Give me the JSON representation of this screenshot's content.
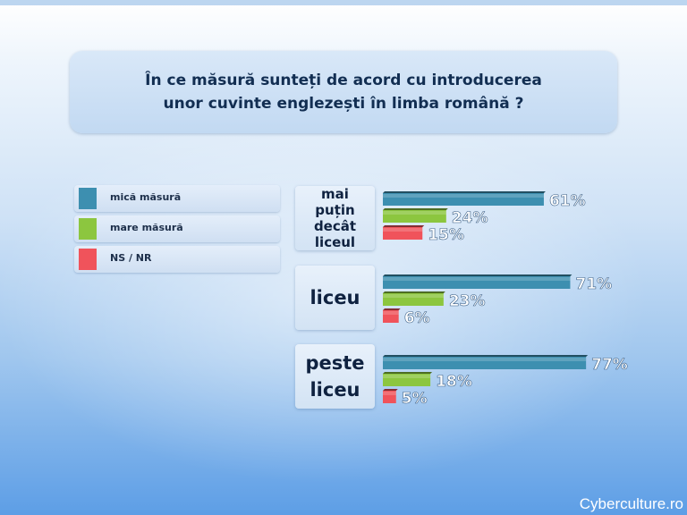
{
  "chart_data": {
    "type": "bar",
    "orientation": "horizontal",
    "title": "În ce măsură sunteți de acord cu introducerea unor cuvinte englezești în limba română ?",
    "categories": [
      "mai puțin decât liceul",
      "liceu",
      "peste liceu"
    ],
    "series": [
      {
        "name": "mică măsură",
        "color": "#3d8fb0",
        "values": [
          61,
          71,
          77
        ]
      },
      {
        "name": "mare măsură",
        "color": "#8cc63f",
        "values": [
          24,
          23,
          18
        ]
      },
      {
        "name": "NS / NR",
        "color": "#f0535b",
        "values": [
          15,
          6,
          5
        ]
      }
    ],
    "value_suffix": "%",
    "legend_position": "left",
    "grid": false
  },
  "watermark": "Cyberculture.ro"
}
